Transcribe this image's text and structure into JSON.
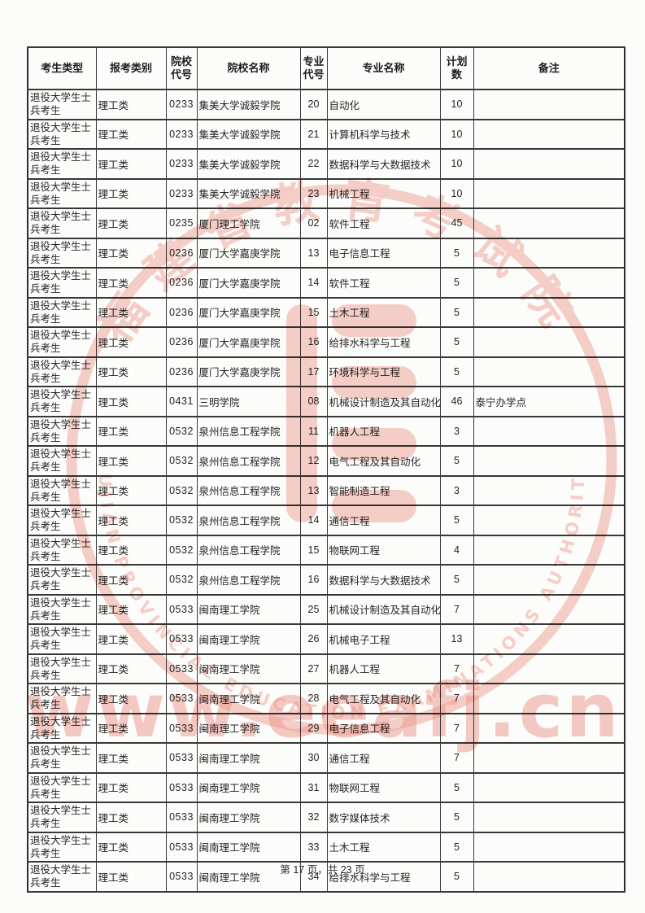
{
  "page": {
    "footer": {
      "text": "第 17 页，共 23 页"
    },
    "watermark": {
      "seal_top_text": "福建省教育考试院",
      "seal_bottom_text": "FUJIAN PROVINCIAL EDUCATION EXAMINATIONS AUTHORITY",
      "url_text": "www.eeafj.cn",
      "seal_color": "#ec8b78",
      "url_color": "#f0988c"
    }
  },
  "table": {
    "headers": {
      "candidate_type": "考生类型",
      "apply_category": "报考类别",
      "college_code": "院校代号",
      "college_name": "院校名称",
      "major_code": "专业代号",
      "major_name": "专业名称",
      "plan_count": "计划数",
      "remark": "备注"
    },
    "rows": [
      {
        "candidate_type": "退役大学生士兵考生",
        "apply_category": "理工类",
        "college_code": "0233",
        "college_name": "集美大学诚毅学院",
        "major_code": "20",
        "major_name": "自动化",
        "plan_count": "10",
        "remark": ""
      },
      {
        "candidate_type": "退役大学生士兵考生",
        "apply_category": "理工类",
        "college_code": "0233",
        "college_name": "集美大学诚毅学院",
        "major_code": "21",
        "major_name": "计算机科学与技术",
        "plan_count": "10",
        "remark": ""
      },
      {
        "candidate_type": "退役大学生士兵考生",
        "apply_category": "理工类",
        "college_code": "0233",
        "college_name": "集美大学诚毅学院",
        "major_code": "22",
        "major_name": "数据科学与大数据技术",
        "plan_count": "10",
        "remark": ""
      },
      {
        "candidate_type": "退役大学生士兵考生",
        "apply_category": "理工类",
        "college_code": "0233",
        "college_name": "集美大学诚毅学院",
        "major_code": "23",
        "major_name": "机械工程",
        "plan_count": "10",
        "remark": ""
      },
      {
        "candidate_type": "退役大学生士兵考生",
        "apply_category": "理工类",
        "college_code": "0235",
        "college_name": "厦门理工学院",
        "major_code": "02",
        "major_name": "软件工程",
        "plan_count": "45",
        "remark": ""
      },
      {
        "candidate_type": "退役大学生士兵考生",
        "apply_category": "理工类",
        "college_code": "0236",
        "college_name": "厦门大学嘉庚学院",
        "major_code": "13",
        "major_name": "电子信息工程",
        "plan_count": "5",
        "remark": ""
      },
      {
        "candidate_type": "退役大学生士兵考生",
        "apply_category": "理工类",
        "college_code": "0236",
        "college_name": "厦门大学嘉庚学院",
        "major_code": "14",
        "major_name": "软件工程",
        "plan_count": "5",
        "remark": ""
      },
      {
        "candidate_type": "退役大学生士兵考生",
        "apply_category": "理工类",
        "college_code": "0236",
        "college_name": "厦门大学嘉庚学院",
        "major_code": "15",
        "major_name": "土木工程",
        "plan_count": "5",
        "remark": ""
      },
      {
        "candidate_type": "退役大学生士兵考生",
        "apply_category": "理工类",
        "college_code": "0236",
        "college_name": "厦门大学嘉庚学院",
        "major_code": "16",
        "major_name": "给排水科学与工程",
        "plan_count": "5",
        "remark": ""
      },
      {
        "candidate_type": "退役大学生士兵考生",
        "apply_category": "理工类",
        "college_code": "0236",
        "college_name": "厦门大学嘉庚学院",
        "major_code": "17",
        "major_name": "环境科学与工程",
        "plan_count": "5",
        "remark": ""
      },
      {
        "candidate_type": "退役大学生士兵考生",
        "apply_category": "理工类",
        "college_code": "0431",
        "college_name": "三明学院",
        "major_code": "08",
        "major_name": "机械设计制造及其自动化",
        "plan_count": "46",
        "remark": "泰宁办学点"
      },
      {
        "candidate_type": "退役大学生士兵考生",
        "apply_category": "理工类",
        "college_code": "0532",
        "college_name": "泉州信息工程学院",
        "major_code": "11",
        "major_name": "机器人工程",
        "plan_count": "3",
        "remark": ""
      },
      {
        "candidate_type": "退役大学生士兵考生",
        "apply_category": "理工类",
        "college_code": "0532",
        "college_name": "泉州信息工程学院",
        "major_code": "12",
        "major_name": "电气工程及其自动化",
        "plan_count": "5",
        "remark": ""
      },
      {
        "candidate_type": "退役大学生士兵考生",
        "apply_category": "理工类",
        "college_code": "0532",
        "college_name": "泉州信息工程学院",
        "major_code": "13",
        "major_name": "智能制造工程",
        "plan_count": "3",
        "remark": ""
      },
      {
        "candidate_type": "退役大学生士兵考生",
        "apply_category": "理工类",
        "college_code": "0532",
        "college_name": "泉州信息工程学院",
        "major_code": "14",
        "major_name": "通信工程",
        "plan_count": "5",
        "remark": ""
      },
      {
        "candidate_type": "退役大学生士兵考生",
        "apply_category": "理工类",
        "college_code": "0532",
        "college_name": "泉州信息工程学院",
        "major_code": "15",
        "major_name": "物联网工程",
        "plan_count": "4",
        "remark": ""
      },
      {
        "candidate_type": "退役大学生士兵考生",
        "apply_category": "理工类",
        "college_code": "0532",
        "college_name": "泉州信息工程学院",
        "major_code": "16",
        "major_name": "数据科学与大数据技术",
        "plan_count": "5",
        "remark": ""
      },
      {
        "candidate_type": "退役大学生士兵考生",
        "apply_category": "理工类",
        "college_code": "0533",
        "college_name": "闽南理工学院",
        "major_code": "25",
        "major_name": "机械设计制造及其自动化",
        "plan_count": "7",
        "remark": ""
      },
      {
        "candidate_type": "退役大学生士兵考生",
        "apply_category": "理工类",
        "college_code": "0533",
        "college_name": "闽南理工学院",
        "major_code": "26",
        "major_name": "机械电子工程",
        "plan_count": "13",
        "remark": ""
      },
      {
        "candidate_type": "退役大学生士兵考生",
        "apply_category": "理工类",
        "college_code": "0533",
        "college_name": "闽南理工学院",
        "major_code": "27",
        "major_name": "机器人工程",
        "plan_count": "7",
        "remark": ""
      },
      {
        "candidate_type": "退役大学生士兵考生",
        "apply_category": "理工类",
        "college_code": "0533",
        "college_name": "闽南理工学院",
        "major_code": "28",
        "major_name": "电气工程及其自动化",
        "plan_count": "7",
        "remark": ""
      },
      {
        "candidate_type": "退役大学生士兵考生",
        "apply_category": "理工类",
        "college_code": "0533",
        "college_name": "闽南理工学院",
        "major_code": "29",
        "major_name": "电子信息工程",
        "plan_count": "7",
        "remark": ""
      },
      {
        "candidate_type": "退役大学生士兵考生",
        "apply_category": "理工类",
        "college_code": "0533",
        "college_name": "闽南理工学院",
        "major_code": "30",
        "major_name": "通信工程",
        "plan_count": "7",
        "remark": ""
      },
      {
        "candidate_type": "退役大学生士兵考生",
        "apply_category": "理工类",
        "college_code": "0533",
        "college_name": "闽南理工学院",
        "major_code": "31",
        "major_name": "物联网工程",
        "plan_count": "5",
        "remark": ""
      },
      {
        "candidate_type": "退役大学生士兵考生",
        "apply_category": "理工类",
        "college_code": "0533",
        "college_name": "闽南理工学院",
        "major_code": "32",
        "major_name": "数字媒体技术",
        "plan_count": "5",
        "remark": ""
      },
      {
        "candidate_type": "退役大学生士兵考生",
        "apply_category": "理工类",
        "college_code": "0533",
        "college_name": "闽南理工学院",
        "major_code": "33",
        "major_name": "土木工程",
        "plan_count": "5",
        "remark": ""
      },
      {
        "candidate_type": "退役大学生士兵考生",
        "apply_category": "理工类",
        "college_code": "0533",
        "college_name": "闽南理工学院",
        "major_code": "34",
        "major_name": "给排水科学与工程",
        "plan_count": "5",
        "remark": ""
      }
    ]
  }
}
